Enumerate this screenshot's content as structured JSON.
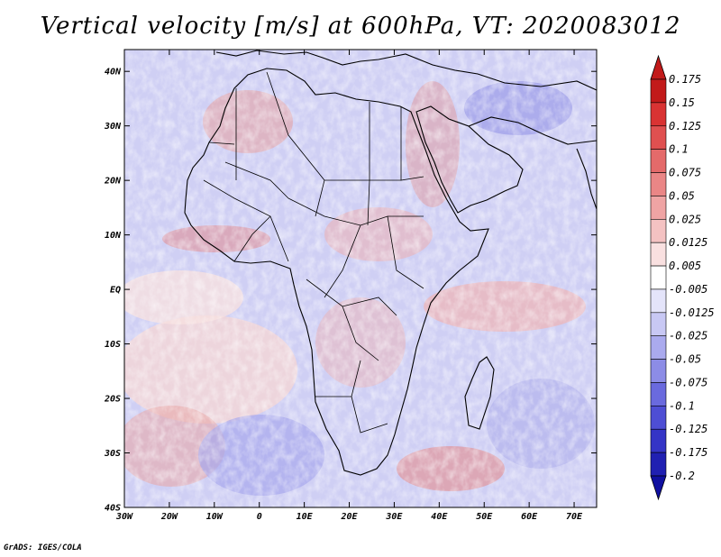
{
  "title": "Vertical velocity [m/s] at 600hPa, VT: 2020083012",
  "credit": "GrADS: IGES/COLA",
  "lat_labels": [
    "40N",
    "30N",
    "20N",
    "10N",
    "EQ",
    "10S",
    "20S",
    "30S",
    "40S"
  ],
  "lon_labels": [
    "30W",
    "20W",
    "10W",
    "0",
    "10E",
    "20E",
    "30E",
    "40E",
    "50E",
    "60E",
    "70E"
  ],
  "map_extent": {
    "lon_min": -30,
    "lon_max": 75,
    "lat_min": -40,
    "lat_max": 44
  },
  "colorbar": {
    "levels": [
      "0.175",
      "0.15",
      "0.125",
      "0.1",
      "0.075",
      "0.05",
      "0.025",
      "0.0125",
      "0.005",
      "-0.005",
      "-0.0125",
      "-0.025",
      "-0.05",
      "-0.075",
      "-0.1",
      "-0.125",
      "-0.175",
      "-0.2"
    ],
    "colors": [
      "#c21a1a",
      "#c21a1a",
      "#d93333",
      "#e05050",
      "#e46a6a",
      "#ea8686",
      "#efa4a4",
      "#f4c2c2",
      "#f9e0e0",
      "#ffffff",
      "#e4e4fa",
      "#c8c8f4",
      "#aaaaee",
      "#8c8ce6",
      "#6a6ade",
      "#4e4ed4",
      "#3434c6",
      "#2020b2",
      "#1010a0"
    ]
  },
  "colors": {
    "land_line": "#000000",
    "accent_red": "#d93333",
    "accent_blue": "#6a6ade"
  }
}
